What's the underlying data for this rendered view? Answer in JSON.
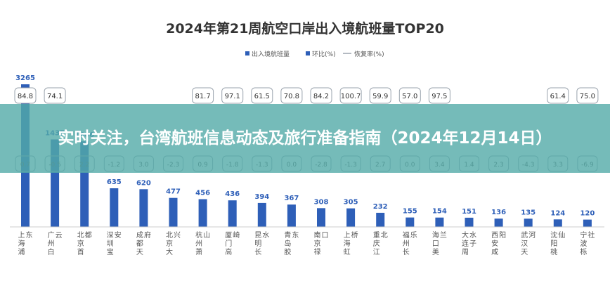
{
  "overlay": {
    "headline": "实时关注，台湾航班信息动态及旅行准备指南（2024年12月14日）"
  },
  "colors": {
    "bar": "#2e5fb8",
    "bubble_stroke": "#9aa3ad",
    "title": "#333333",
    "axis_text": "#555555",
    "banner": "#52aaa8"
  },
  "chart_data": {
    "type": "bar",
    "title": "2024年第21周航空口岸出入境航班量TOP20",
    "legend": [
      "出入境航班量",
      "环比(%)",
      "恢复率(%)"
    ],
    "legend_position": "top-center",
    "categories": [
      "上海浦东",
      "广州白云",
      "北京首都",
      "深圳宝安",
      "成都天府",
      "北京大兴",
      "杭州萧山",
      "厦门高崎",
      "昆明长水",
      "青岛胶东",
      "南京禄口",
      "上海虹桥",
      "重庆江北",
      "福州长乐",
      "海口美兰",
      "大连周水子",
      "西安咸阳",
      "武汉天河",
      "沈阳桃仙",
      "宁波栎社"
    ],
    "series": [
      {
        "name": "出入境航班量",
        "values": [
          3265,
          1437,
          1406,
          635,
          620,
          477,
          456,
          436,
          394,
          367,
          308,
          305,
          232,
          155,
          154,
          151,
          136,
          135,
          124,
          120
        ]
      },
      {
        "name": "环比(%)",
        "values": [
          0.7,
          -0.5,
          2.2,
          -1.2,
          3.0,
          -2.3,
          0.9,
          -1.8,
          -1.3,
          0.0,
          -2.8,
          -1.3,
          2.7,
          0.0,
          3.4,
          1.4,
          2.3,
          -4.3,
          3.3,
          -6.9
        ]
      },
      {
        "name": "恢复率(%)",
        "values": [
          84.8,
          74.1,
          null,
          null,
          null,
          null,
          81.7,
          97.1,
          61.5,
          70.8,
          84.2,
          100.7,
          59.9,
          57.0,
          97.5,
          null,
          null,
          null,
          61.4,
          75.0
        ]
      }
    ],
    "visible_axis_max": 650,
    "grid": false
  }
}
